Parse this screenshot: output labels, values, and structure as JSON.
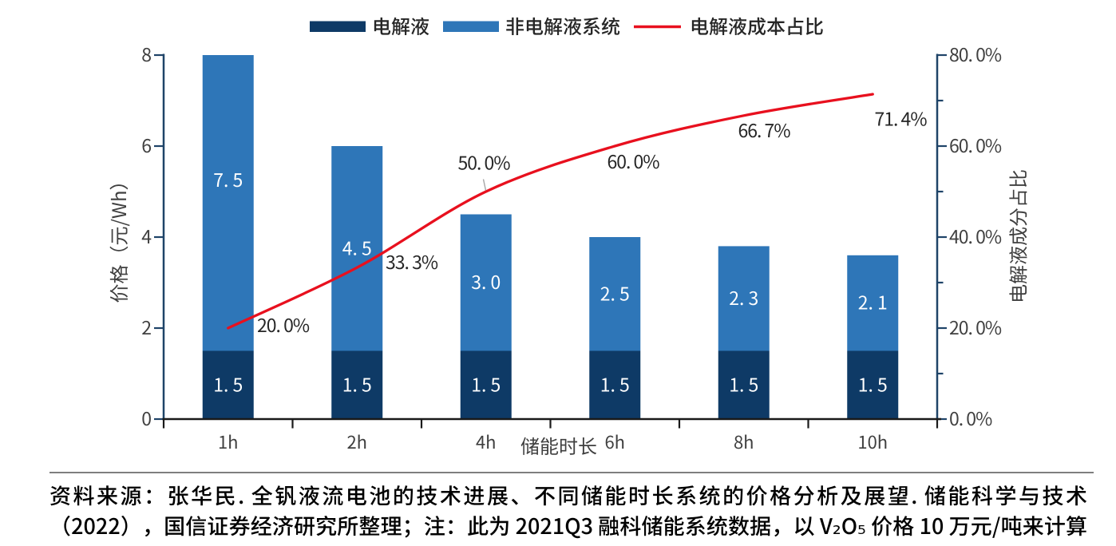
{
  "page": {
    "background": "#ffffff"
  },
  "colors": {
    "electrolyte_bar": "#0e3a66",
    "non_electrolyte_bar": "#2e76b8",
    "ratio_line": "#e8101e",
    "value_axis": "#1f4468",
    "category_axis": "#1a1a1a",
    "tick_text": "#404040",
    "data_label_light": "#ffffff",
    "pct_label": "#262626",
    "divider": "#7f7f7f",
    "source_text": "#000000"
  },
  "legend": {
    "items": [
      {
        "type": "bar",
        "label": "电解液"
      },
      {
        "type": "bar",
        "label": "非电解液系统"
      },
      {
        "type": "line",
        "label": "电解液成本占比"
      }
    ]
  },
  "chart_data": {
    "type": "bar",
    "subtype": "stacked-bar-with-line",
    "categories": [
      "1h",
      "2h",
      "4h",
      "6h",
      "8h",
      "10h"
    ],
    "series": [
      {
        "name": "电解液",
        "type": "bar",
        "stack": "price",
        "values": [
          1.5,
          1.5,
          1.5,
          1.5,
          1.5,
          1.5
        ],
        "labels": [
          "1. 5",
          "1. 5",
          "1. 5",
          "1. 5",
          "1. 5",
          "1. 5"
        ]
      },
      {
        "name": "非电解液系统",
        "type": "bar",
        "stack": "price",
        "values": [
          7.5,
          4.5,
          3.0,
          2.5,
          2.3,
          2.1
        ],
        "labels": [
          "7. 5",
          "4. 5",
          "3. 0",
          "2. 5",
          "2. 3",
          "2. 1"
        ]
      },
      {
        "name": "电解液成本占比",
        "type": "line",
        "axis": "right",
        "values": [
          20.0,
          33.3,
          50.0,
          60.0,
          66.7,
          71.4
        ],
        "labels": [
          "20. 0%",
          "33. 3%",
          "50. 0%",
          "60. 0%",
          "66. 7%",
          "71. 4%"
        ]
      }
    ],
    "xlabel": "储能时长",
    "ylabel": "价格（元/Wh）",
    "left_axis": {
      "title": "价格（元/Wh）",
      "range": [
        0,
        8
      ],
      "tick_labels": [
        "0",
        "2",
        "4",
        "6",
        "8"
      ]
    },
    "right_axis": {
      "title": "电解液成分占比",
      "range": [
        0,
        80
      ],
      "tick_labels": [
        "0. 0%",
        "20. 0%",
        "40. 0%",
        "60. 0%",
        "80. 0%"
      ],
      "minor_ticks": [
        10,
        30,
        50,
        70
      ]
    },
    "grid": false,
    "legend_position": "top"
  },
  "source_note": {
    "line1": "资料来源：张华民. 全钒液流电池的技术进展、不同储能时长系统的价格分析及展望. 储能科学与技术",
    "line2": "（2022），国信证券经济研究所整理；注：此为 2021Q3 融科储能系统数据，以 V₂O₅ 价格 10 万元/吨来计算"
  }
}
